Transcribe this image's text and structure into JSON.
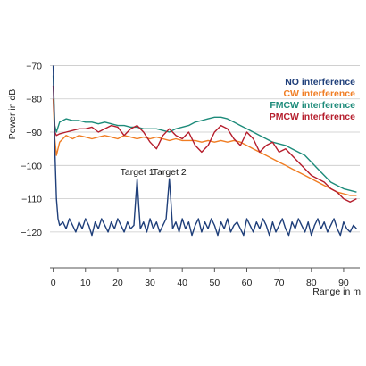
{
  "chart_data": {
    "type": "line",
    "title": "",
    "xlabel": "Range in m",
    "ylabel": "Power in dB",
    "xlim": [
      -1,
      95
    ],
    "ylim": [
      -127,
      -68
    ],
    "xticks": [
      0,
      10,
      20,
      30,
      40,
      50,
      60,
      70,
      80,
      90
    ],
    "yticks": [
      -70,
      -80,
      -90,
      -100,
      -110,
      -120
    ],
    "ytick_labels": [
      "−70",
      "−80",
      "−90",
      "−100",
      "−110",
      "−120"
    ],
    "grid": "horizontal",
    "legend_position": "top-right",
    "series": [
      {
        "name": "NO interference",
        "color": "#1f3f7a",
        "x": [
          0,
          0.5,
          1,
          1.5,
          2,
          3,
          4,
          5,
          6,
          7,
          8,
          9,
          10,
          11,
          12,
          13,
          14,
          15,
          16,
          17,
          18,
          19,
          20,
          21,
          22,
          23,
          24,
          25,
          25.5,
          26,
          26.5,
          27,
          28,
          29,
          30,
          31,
          32,
          33,
          34,
          35,
          35.5,
          36,
          36.5,
          37,
          38,
          39,
          40,
          41,
          42,
          43,
          44,
          45,
          46,
          47,
          48,
          49,
          50,
          51,
          52,
          53,
          54,
          55,
          56,
          57,
          58,
          59,
          60,
          61,
          62,
          63,
          64,
          65,
          66,
          67,
          68,
          69,
          70,
          71,
          72,
          73,
          74,
          75,
          76,
          77,
          78,
          79,
          80,
          81,
          82,
          83,
          84,
          85,
          86,
          87,
          88,
          89,
          90,
          91,
          92,
          93,
          94
        ],
        "y": [
          -70,
          -95,
          -110,
          -116,
          -118,
          -117,
          -119,
          -116,
          -118,
          -120,
          -117,
          -119,
          -116,
          -118,
          -121,
          -117,
          -119,
          -116,
          -118,
          -120,
          -117,
          -119,
          -116,
          -118,
          -120,
          -117,
          -119,
          -118,
          -111,
          -104,
          -112,
          -119,
          -117,
          -120,
          -116,
          -119,
          -117,
          -120,
          -118,
          -116,
          -110,
          -104,
          -111,
          -119,
          -117,
          -120,
          -116,
          -119,
          -117,
          -121,
          -118,
          -116,
          -120,
          -117,
          -119,
          -116,
          -118,
          -121,
          -117,
          -119,
          -116,
          -120,
          -118,
          -117,
          -119,
          -121,
          -116,
          -118,
          -120,
          -117,
          -119,
          -116,
          -118,
          -121,
          -117,
          -120,
          -118,
          -116,
          -119,
          -121,
          -117,
          -119,
          -116,
          -118,
          -120,
          -117,
          -121,
          -118,
          -116,
          -119,
          -117,
          -120,
          -118,
          -116,
          -119,
          -121,
          -117,
          -119,
          -120,
          -118,
          -119
        ]
      },
      {
        "name": "CW interference",
        "color": "#f07d23",
        "x": [
          0,
          0.5,
          1,
          2,
          4,
          6,
          8,
          10,
          12,
          14,
          16,
          18,
          20,
          22,
          24,
          26,
          28,
          30,
          32,
          34,
          36,
          38,
          40,
          42,
          44,
          46,
          48,
          50,
          52,
          54,
          56,
          58,
          60,
          62,
          64,
          66,
          68,
          70,
          72,
          74,
          76,
          78,
          80,
          82,
          84,
          86,
          88,
          90,
          92,
          94
        ],
        "y": [
          -80,
          -92,
          -97,
          -93,
          -91,
          -92,
          -91,
          -91.5,
          -92,
          -91.5,
          -91,
          -91.5,
          -92,
          -91,
          -91.5,
          -92,
          -91.5,
          -92,
          -91.5,
          -92,
          -92.5,
          -92,
          -92.5,
          -92.5,
          -92.5,
          -93,
          -92.5,
          -93,
          -92.5,
          -93,
          -92.5,
          -93,
          -94,
          -95,
          -96,
          -97,
          -98,
          -99,
          -100,
          -101,
          -102,
          -103,
          -104,
          -105,
          -106,
          -107,
          -108,
          -108.5,
          -109,
          -109
        ]
      },
      {
        "name": "FMCW interference",
        "color": "#1d8b7a",
        "x": [
          0,
          0.5,
          1,
          2,
          4,
          6,
          8,
          10,
          12,
          14,
          16,
          18,
          20,
          22,
          24,
          26,
          28,
          30,
          32,
          34,
          36,
          38,
          40,
          42,
          44,
          46,
          48,
          50,
          52,
          54,
          56,
          58,
          60,
          62,
          64,
          66,
          68,
          70,
          72,
          74,
          76,
          78,
          80,
          82,
          84,
          86,
          88,
          90,
          92,
          94
        ],
        "y": [
          -73,
          -88,
          -90,
          -87,
          -86,
          -86.5,
          -86.5,
          -87,
          -87,
          -87.5,
          -87,
          -87.5,
          -88,
          -88,
          -88.5,
          -88.5,
          -89,
          -89,
          -89,
          -89.5,
          -90,
          -89,
          -88.5,
          -88,
          -87,
          -86.5,
          -86,
          -85.5,
          -85.5,
          -86,
          -87,
          -88,
          -89,
          -90,
          -91,
          -92,
          -93,
          -93.5,
          -94,
          -95,
          -96,
          -97,
          -99,
          -101,
          -103,
          -105,
          -106,
          -107,
          -107.5,
          -108
        ]
      },
      {
        "name": "PMCW interference",
        "color": "#b51d2c",
        "x": [
          0,
          0.5,
          1,
          2,
          4,
          6,
          8,
          10,
          12,
          14,
          16,
          18,
          20,
          22,
          24,
          26,
          28,
          30,
          32,
          34,
          36,
          38,
          40,
          42,
          44,
          46,
          48,
          50,
          52,
          54,
          56,
          58,
          60,
          62,
          64,
          66,
          68,
          70,
          72,
          74,
          76,
          78,
          80,
          82,
          84,
          86,
          88,
          90,
          92,
          94
        ],
        "y": [
          -76,
          -90,
          -91,
          -90.5,
          -90,
          -89.5,
          -89,
          -89,
          -88.5,
          -90,
          -89,
          -88,
          -88.5,
          -91,
          -89,
          -88,
          -90,
          -93,
          -95,
          -91,
          -89,
          -91,
          -92,
          -90,
          -94,
          -96,
          -94,
          -90,
          -88,
          -89,
          -92,
          -94,
          -90,
          -92,
          -96,
          -94,
          -93,
          -96,
          -95,
          -97,
          -99,
          -101,
          -103,
          -104,
          -105,
          -107,
          -108,
          -110,
          -111,
          -110
        ]
      }
    ],
    "annotations": [
      {
        "text": "Target 1",
        "x": 26,
        "y": -104
      },
      {
        "text": "Target 2",
        "x": 36,
        "y": -104
      }
    ]
  }
}
